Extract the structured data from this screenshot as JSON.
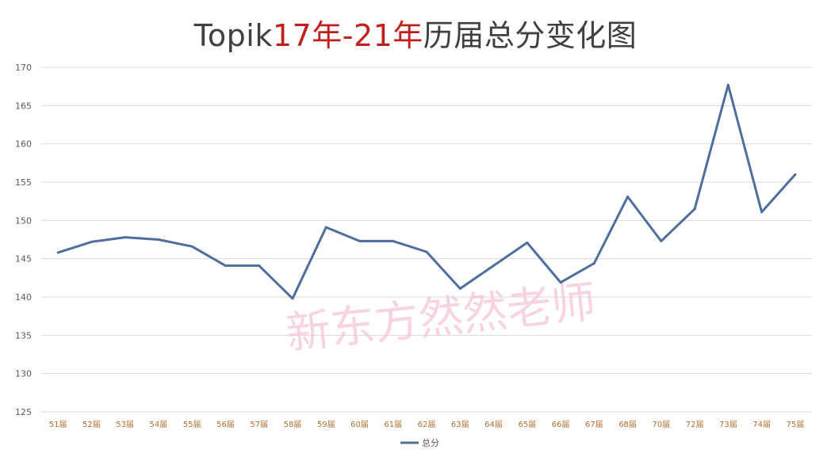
{
  "title": {
    "prefix": "Topik",
    "highlight": "17年-21年",
    "suffix": "历届总分变化图"
  },
  "watermark": "新东方然然老师",
  "colors": {
    "line": "#4e6f9c",
    "grid": "#d9d9d9",
    "title_highlight": "#c0201e"
  },
  "chart_data": {
    "type": "line",
    "title": "Topik17年-21年历届总分变化图",
    "categories": [
      "51届",
      "52届",
      "53届",
      "54届",
      "55届",
      "56届",
      "57届",
      "58届",
      "59届",
      "60届",
      "61届",
      "62届",
      "63届",
      "64届",
      "65届",
      "66届",
      "67届",
      "68届",
      "70届",
      "72届",
      "73届",
      "74届",
      "75届"
    ],
    "series": [
      {
        "name": "总分",
        "values": [
          145.8,
          147.2,
          147.8,
          147.5,
          146.6,
          144.1,
          144.1,
          139.8,
          149.1,
          147.3,
          147.3,
          145.9,
          141.1,
          144.1,
          147.1,
          141.9,
          144.4,
          153.1,
          147.3,
          151.5,
          167.7,
          151.1,
          156.0
        ]
      }
    ],
    "yticks": [
      "125",
      "130",
      "135",
      "140",
      "145",
      "150",
      "155",
      "160",
      "165",
      "170"
    ],
    "ylim": [
      125,
      170
    ],
    "grid": true,
    "legend_position": "bottom"
  }
}
